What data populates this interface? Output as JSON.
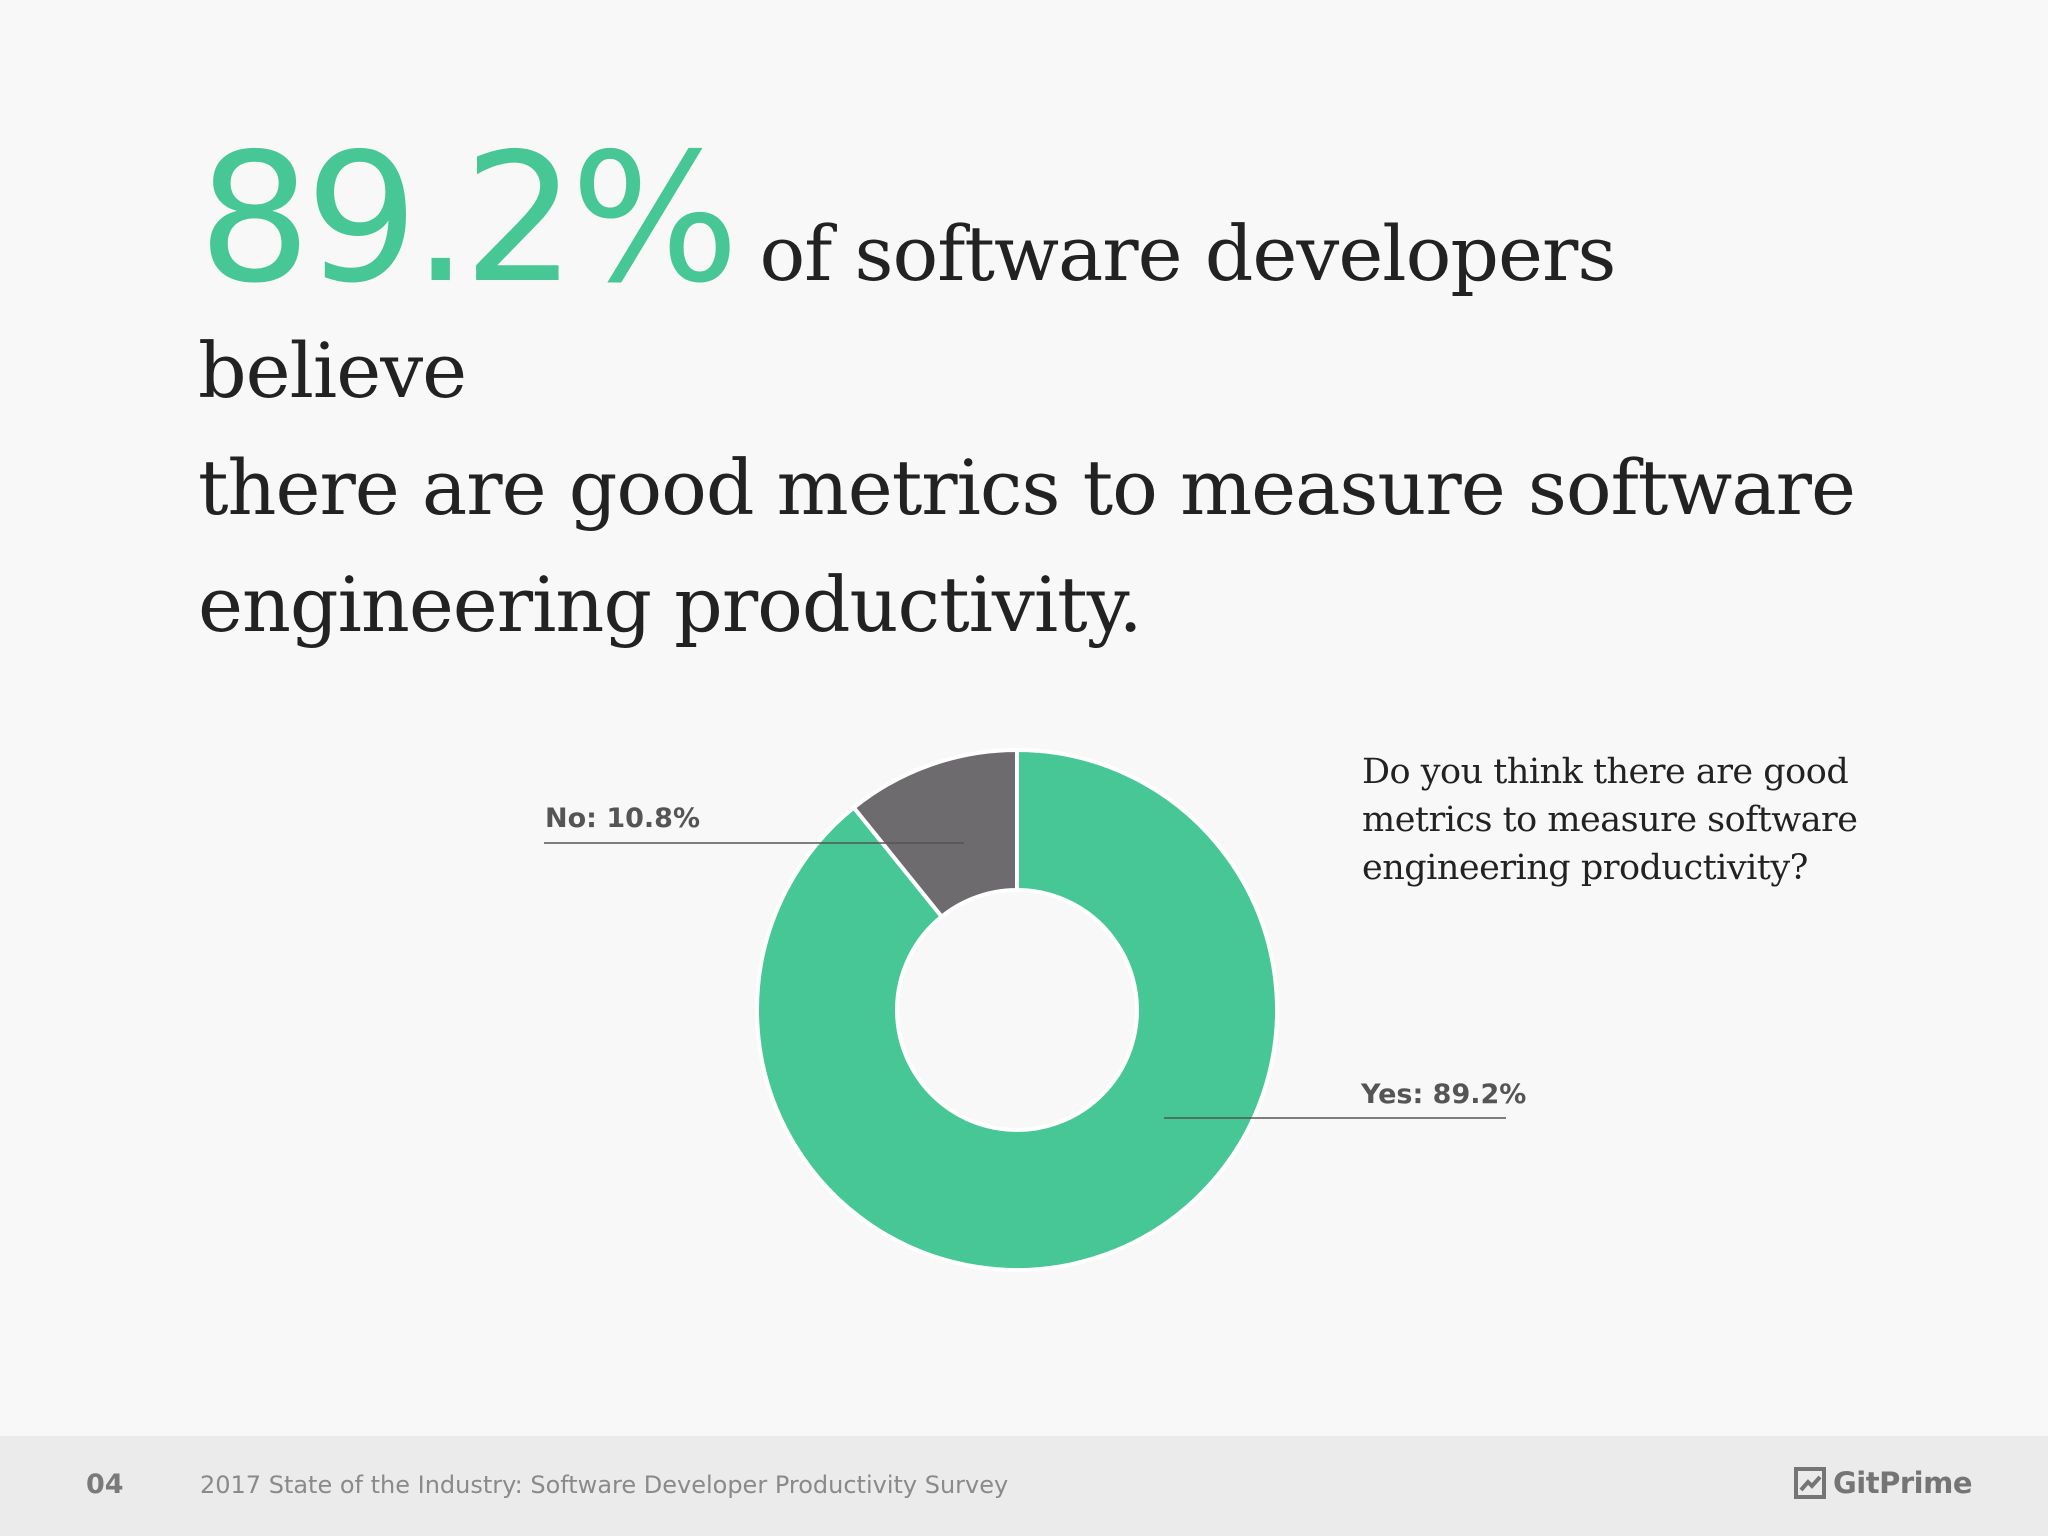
{
  "headline": {
    "stat": "89.2%",
    "line1": "of software developers believe",
    "line2": "there are good metrics to measure software",
    "line3": "engineering productivity."
  },
  "chart_data": {
    "type": "pie",
    "categories": [
      "Yes",
      "No"
    ],
    "values": [
      89.2,
      10.8
    ],
    "colors": [
      "#47c795",
      "#6d6b6e"
    ],
    "donut": true,
    "data_labels": [
      "Yes: 89.2%",
      "No: 10.8%"
    ],
    "question": "Do you think there are good metrics to measure software engineering productivity?"
  },
  "colors": {
    "accent": "#47c795",
    "secondary": "#6d6b6e",
    "text": "#222222",
    "footer_bg": "#ebebeb"
  },
  "footer": {
    "page_number": "04",
    "title": "2017 State of the Industry: Software Developer Productivity Survey",
    "brand": "GitPrime",
    "brand_icon": "gitprime-logo-icon"
  }
}
